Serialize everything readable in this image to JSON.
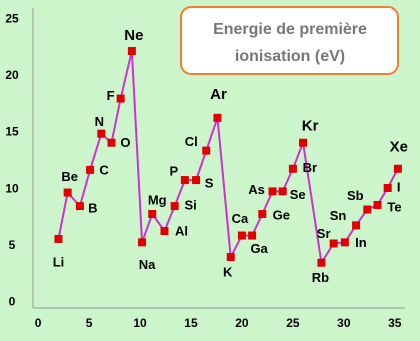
{
  "chart_data": {
    "type": "line",
    "title": [
      "Energie de première",
      "ionisation (eV)"
    ],
    "x": [
      2.0,
      2.9,
      4.1,
      5.1,
      6.2,
      7.2,
      8.1,
      9.2,
      10.2,
      11.2,
      12.4,
      13.4,
      14.4,
      15.5,
      16.5,
      17.6,
      18.9,
      20.0,
      21.0,
      22.0,
      23.0,
      24.0,
      25.0,
      26.0,
      27.8,
      29.0,
      30.1,
      31.2,
      32.3,
      33.3,
      34.3,
      35.3
    ],
    "series": [
      {
        "name": "Energie de première ionisation",
        "color": "#cc33cc",
        "marker_color": "#e00000",
        "values": [
          5.6,
          9.7,
          8.5,
          11.7,
          14.9,
          14.1,
          18.0,
          22.2,
          5.3,
          7.8,
          6.3,
          8.5,
          10.8,
          10.8,
          13.4,
          16.3,
          4.0,
          5.9,
          5.9,
          7.8,
          9.8,
          9.8,
          11.8,
          14.1,
          3.5,
          5.2,
          5.3,
          6.8,
          8.2,
          8.6,
          10.1,
          11.8
        ],
        "point_labels": [
          "Li",
          "Be",
          "B",
          "C",
          "N",
          "O",
          "F",
          "Ne",
          "Na",
          "Mg",
          "Al",
          "Si",
          "P",
          "S",
          "Cl",
          "Ar",
          "K",
          "Ca",
          "Ga",
          "Ge",
          "As",
          "Se",
          "Br",
          "Kr",
          "Rb",
          "Sr",
          "In",
          "Sn",
          "Sb",
          "Te",
          "I",
          "Xe"
        ]
      }
    ],
    "xlim": [
      -0.5,
      36
    ],
    "xticks": [
      0,
      5,
      10,
      15,
      20,
      25,
      30,
      35
    ],
    "ylim": [
      -0.5,
      26
    ],
    "yticks": [
      0,
      5,
      10,
      15,
      20,
      25
    ],
    "grid": false
  }
}
